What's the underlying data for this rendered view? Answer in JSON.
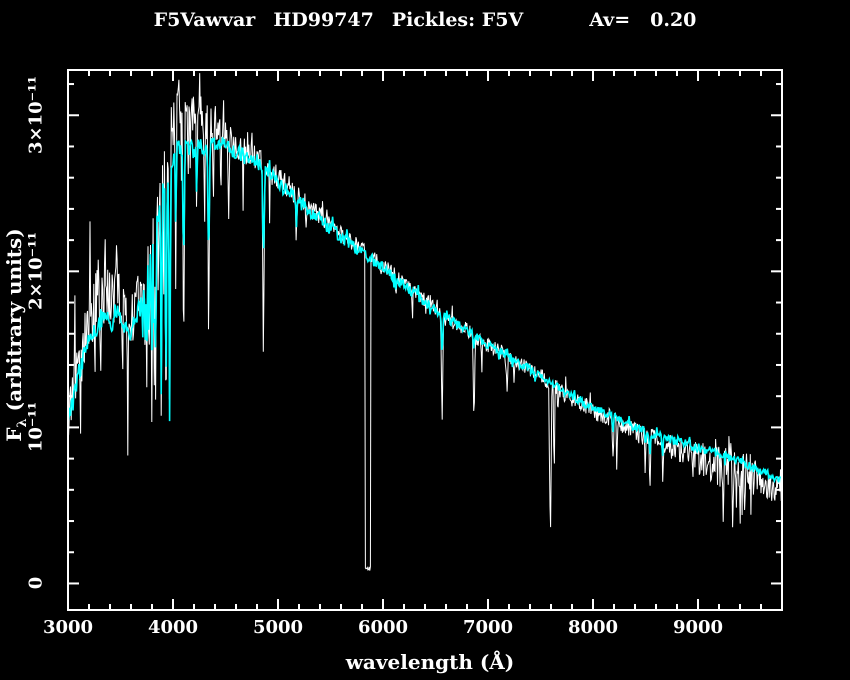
{
  "title": {
    "star": "F5Vawvar",
    "hd": "HD99747",
    "pickles": "Pickles: F5V",
    "av_label": "Av=",
    "av_value": "0.20"
  },
  "axes": {
    "xlabel": "wavelength (Å)",
    "ylabel_f": "F",
    "ylabel_sub": "λ",
    "ylabel_units": " (arbitrary units)",
    "x_ticks": [
      {
        "value": 3000,
        "label": "3000"
      },
      {
        "value": 4000,
        "label": "4000"
      },
      {
        "value": 5000,
        "label": "5000"
      },
      {
        "value": 6000,
        "label": "6000"
      },
      {
        "value": 7000,
        "label": "7000"
      },
      {
        "value": 8000,
        "label": "8000"
      },
      {
        "value": 9000,
        "label": "9000"
      }
    ],
    "y_ticks": [
      {
        "value": 0,
        "label": "0"
      },
      {
        "value": 1,
        "label": "10⁻¹¹"
      },
      {
        "value": 2,
        "label": "2×10⁻¹¹"
      },
      {
        "value": 3,
        "label": "3×10⁻¹¹"
      }
    ],
    "x_minor_step": 200,
    "y_minor_step": 0.2,
    "frame_color": "#ffffff",
    "background_color": "#000000"
  },
  "chart_data": {
    "type": "line",
    "title": "F5Vawvar  HD99747  Pickles: F5V  Av= 0.20",
    "xlabel": "wavelength (Å)",
    "ylabel": "Fλ (arbitrary units)",
    "x_unit": "Angstrom",
    "y_unit": "flux × 10⁻¹¹ (arbitrary units)",
    "xlim": [
      3000,
      9800
    ],
    "ylim": [
      -0.17,
      3.29
    ],
    "grid": false,
    "legend": "none",
    "continuum": [
      [
        3000,
        1.06
      ],
      [
        3050,
        1.18
      ],
      [
        3100,
        1.32
      ],
      [
        3150,
        1.46
      ],
      [
        3200,
        1.58
      ],
      [
        3250,
        1.62
      ],
      [
        3300,
        1.66
      ],
      [
        3350,
        1.72
      ],
      [
        3400,
        1.64
      ],
      [
        3470,
        1.74
      ],
      [
        3520,
        1.68
      ],
      [
        3580,
        1.58
      ],
      [
        3640,
        1.68
      ],
      [
        3700,
        1.84
      ],
      [
        3750,
        2.0
      ],
      [
        3800,
        2.18
      ],
      [
        3850,
        2.35
      ],
      [
        3900,
        2.52
      ],
      [
        3950,
        2.6
      ],
      [
        4000,
        2.74
      ],
      [
        4050,
        2.8
      ],
      [
        4100,
        2.78
      ],
      [
        4150,
        2.79
      ],
      [
        4200,
        2.77
      ],
      [
        4250,
        2.8
      ],
      [
        4300,
        2.78
      ],
      [
        4350,
        2.8
      ],
      [
        4400,
        2.83
      ],
      [
        4500,
        2.8
      ],
      [
        4600,
        2.76
      ],
      [
        4700,
        2.73
      ],
      [
        4800,
        2.7
      ],
      [
        4900,
        2.63
      ],
      [
        5000,
        2.57
      ],
      [
        5100,
        2.51
      ],
      [
        5200,
        2.45
      ],
      [
        5300,
        2.39
      ],
      [
        5400,
        2.33
      ],
      [
        5500,
        2.27
      ],
      [
        5600,
        2.22
      ],
      [
        5700,
        2.17
      ],
      [
        5800,
        2.12
      ],
      [
        5900,
        2.07
      ],
      [
        6000,
        2.02
      ],
      [
        6100,
        1.97
      ],
      [
        6200,
        1.91
      ],
      [
        6300,
        1.86
      ],
      [
        6400,
        1.8
      ],
      [
        6500,
        1.75
      ],
      [
        6600,
        1.7
      ],
      [
        6700,
        1.66
      ],
      [
        6800,
        1.62
      ],
      [
        6900,
        1.57
      ],
      [
        7000,
        1.53
      ],
      [
        7100,
        1.49
      ],
      [
        7200,
        1.45
      ],
      [
        7300,
        1.41
      ],
      [
        7400,
        1.37
      ],
      [
        7500,
        1.33
      ],
      [
        7600,
        1.29
      ],
      [
        7700,
        1.24
      ],
      [
        7800,
        1.2
      ],
      [
        7900,
        1.16
      ],
      [
        8000,
        1.13
      ],
      [
        8100,
        1.1
      ],
      [
        8200,
        1.07
      ],
      [
        8300,
        1.03
      ],
      [
        8400,
        1.0
      ],
      [
        8500,
        0.97
      ],
      [
        8600,
        0.95
      ],
      [
        8700,
        0.93
      ],
      [
        8800,
        0.91
      ],
      [
        8900,
        0.89
      ],
      [
        9000,
        0.87
      ],
      [
        9100,
        0.85
      ],
      [
        9200,
        0.83
      ],
      [
        9300,
        0.81
      ],
      [
        9400,
        0.78
      ],
      [
        9500,
        0.75
      ],
      [
        9600,
        0.72
      ],
      [
        9700,
        0.69
      ],
      [
        9800,
        0.66
      ]
    ],
    "series": [
      {
        "name": "HD99747 observed spectrum",
        "dom_name": "observed-spectrum-line",
        "color": "#ffffff",
        "width": 1,
        "step": 6,
        "seed": 11,
        "offset": [
          [
            3000,
            0.0
          ],
          [
            3100,
            0.06
          ],
          [
            3200,
            0.15
          ],
          [
            3300,
            0.17
          ],
          [
            3400,
            0.15
          ],
          [
            3500,
            0.12
          ],
          [
            3600,
            0.08
          ],
          [
            3700,
            0.05
          ],
          [
            3800,
            0.05
          ],
          [
            3900,
            0.08
          ],
          [
            3950,
            0.15
          ],
          [
            4000,
            0.22
          ],
          [
            4050,
            0.3
          ],
          [
            4100,
            0.24
          ],
          [
            4150,
            0.26
          ],
          [
            4250,
            0.22
          ],
          [
            4350,
            0.16
          ],
          [
            4450,
            0.1
          ],
          [
            4550,
            0.06
          ],
          [
            4700,
            0.04
          ],
          [
            4900,
            0.03
          ],
          [
            5200,
            0.03
          ],
          [
            5600,
            0.02
          ],
          [
            6000,
            0.02
          ],
          [
            6500,
            0.01
          ],
          [
            7000,
            0.0
          ],
          [
            7500,
            0.0
          ],
          [
            8000,
            -0.02
          ],
          [
            8500,
            -0.03
          ],
          [
            9000,
            -0.05
          ],
          [
            9300,
            -0.08
          ],
          [
            9600,
            -0.06
          ],
          [
            9800,
            -0.04
          ]
        ],
        "noise": [
          [
            3000,
            0.13
          ],
          [
            3200,
            0.22
          ],
          [
            3400,
            0.2
          ],
          [
            3600,
            0.16
          ],
          [
            3800,
            0.18
          ],
          [
            4000,
            0.16
          ],
          [
            4200,
            0.14
          ],
          [
            4400,
            0.11
          ],
          [
            4600,
            0.09
          ],
          [
            4800,
            0.08
          ],
          [
            5000,
            0.08
          ],
          [
            5400,
            0.06
          ],
          [
            5800,
            0.05
          ],
          [
            6200,
            0.045
          ],
          [
            6600,
            0.045
          ],
          [
            7000,
            0.05
          ],
          [
            7400,
            0.05
          ],
          [
            7800,
            0.055
          ],
          [
            8200,
            0.06
          ],
          [
            8600,
            0.065
          ],
          [
            9000,
            0.1
          ],
          [
            9200,
            0.17
          ],
          [
            9400,
            0.17
          ],
          [
            9600,
            0.12
          ],
          [
            9800,
            0.1
          ]
        ],
        "lines": [
          [
            3712,
            10,
            1.45
          ],
          [
            3734,
            9,
            1.3
          ],
          [
            3750,
            9,
            1.25
          ],
          [
            3771,
            9,
            1.2
          ],
          [
            3798,
            10,
            1.1
          ],
          [
            3820,
            9,
            1.05
          ],
          [
            3835,
            10,
            1.05
          ],
          [
            3860,
            8,
            1.55
          ],
          [
            3889,
            11,
            0.95
          ],
          [
            3910,
            8,
            1.7
          ],
          [
            3933,
            12,
            0.8
          ],
          [
            3968,
            12,
            0.85
          ],
          [
            4026,
            9,
            1.95
          ],
          [
            4101,
            14,
            1.36
          ],
          [
            4144,
            8,
            2.35
          ],
          [
            4226,
            8,
            2.28
          ],
          [
            4300,
            10,
            2.22
          ],
          [
            4340,
            14,
            1.45
          ],
          [
            4383,
            8,
            2.3
          ],
          [
            4455,
            8,
            2.38
          ],
          [
            4530,
            9,
            2.3
          ],
          [
            4668,
            8,
            2.38
          ],
          [
            4861,
            14,
            1.38
          ],
          [
            4920,
            8,
            2.28
          ],
          [
            5175,
            14,
            2.2
          ],
          [
            5270,
            10,
            2.22
          ],
          [
            6122,
            8,
            1.82
          ],
          [
            6280,
            10,
            1.7
          ],
          [
            6563,
            14,
            1.0
          ],
          [
            6867,
            13,
            1.0
          ],
          [
            6940,
            8,
            1.32
          ],
          [
            7180,
            14,
            1.24
          ],
          [
            7250,
            10,
            1.28
          ],
          [
            7594,
            16,
            0.22
          ],
          [
            7630,
            10,
            0.62
          ],
          [
            7665,
            8,
            1.05
          ],
          [
            8190,
            12,
            0.8
          ],
          [
            8227,
            10,
            0.72
          ],
          [
            8432,
            8,
            0.86
          ],
          [
            8498,
            10,
            0.72
          ],
          [
            8542,
            11,
            0.6
          ],
          [
            8662,
            11,
            0.66
          ],
          [
            8750,
            8,
            0.84
          ],
          [
            9015,
            10,
            0.7
          ]
        ],
        "gap": {
          "from": 5830,
          "to": 5880,
          "level": 0.1
        },
        "spikes": [
          [
            3065,
            1.92
          ],
          [
            3120,
            0.96
          ],
          [
            3210,
            2.32
          ],
          [
            3255,
            1.18
          ],
          [
            3290,
            2.1
          ],
          [
            3310,
            1.25
          ],
          [
            3465,
            2.28
          ],
          [
            3520,
            1.14
          ],
          [
            3570,
            0.82
          ],
          [
            4048,
            3.17
          ],
          [
            4080,
            2.58
          ],
          [
            4120,
            3.05
          ],
          [
            4165,
            2.62
          ],
          [
            4210,
            3.02
          ],
          [
            9310,
            1.0
          ],
          [
            9330,
            0.36
          ],
          [
            9365,
            0.46
          ],
          [
            9400,
            0.32
          ],
          [
            9445,
            0.44
          ],
          [
            9505,
            0.42
          ],
          [
            9700,
            0.48
          ]
        ]
      },
      {
        "name": "Pickles F5V template, reddened Av=0.20",
        "dom_name": "template-spectrum-line",
        "color": "#00ffff",
        "width": 1.6,
        "step": 8,
        "seed": 4,
        "offset": [
          [
            3000,
            0.0
          ],
          [
            9800,
            0.0
          ]
        ],
        "noise": [
          [
            3000,
            0.05
          ],
          [
            3500,
            0.05
          ],
          [
            4000,
            0.06
          ],
          [
            4500,
            0.05
          ],
          [
            5000,
            0.05
          ],
          [
            5600,
            0.04
          ],
          [
            6200,
            0.035
          ],
          [
            7000,
            0.03
          ],
          [
            8000,
            0.025
          ],
          [
            9000,
            0.03
          ],
          [
            9800,
            0.03
          ]
        ],
        "lines": [
          [
            3712,
            10,
            1.55
          ],
          [
            3734,
            9,
            1.45
          ],
          [
            3750,
            9,
            1.4
          ],
          [
            3771,
            9,
            1.35
          ],
          [
            3798,
            10,
            1.28
          ],
          [
            3820,
            9,
            1.25
          ],
          [
            3835,
            10,
            1.2
          ],
          [
            3889,
            11,
            1.1
          ],
          [
            3933,
            12,
            1.0
          ],
          [
            3968,
            12,
            1.05
          ],
          [
            4026,
            9,
            2.15
          ],
          [
            4101,
            14,
            1.95
          ],
          [
            4226,
            8,
            2.45
          ],
          [
            4340,
            14,
            1.98
          ],
          [
            4861,
            14,
            2.02
          ],
          [
            5175,
            12,
            2.25
          ],
          [
            6122,
            8,
            1.88
          ],
          [
            6563,
            14,
            1.45
          ],
          [
            6867,
            10,
            1.45
          ],
          [
            8190,
            10,
            0.95
          ],
          [
            8498,
            10,
            0.86
          ],
          [
            8542,
            11,
            0.78
          ],
          [
            8662,
            11,
            0.81
          ]
        ],
        "gap": null,
        "spikes": []
      }
    ]
  }
}
